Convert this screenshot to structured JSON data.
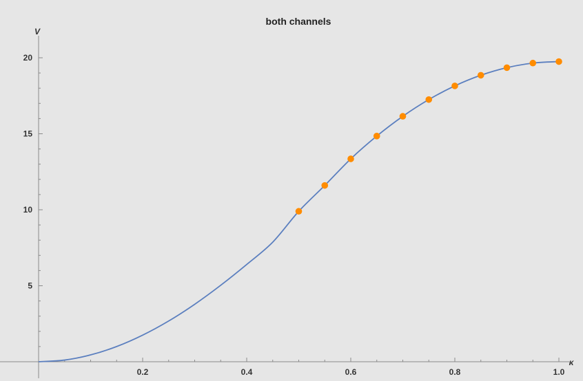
{
  "chart_data": {
    "type": "line",
    "title": "both channels",
    "xlabel": "κ",
    "ylabel": "V",
    "xlim": [
      0,
      1.0
    ],
    "ylim": [
      0,
      20
    ],
    "x_ticks": [
      0.2,
      0.4,
      0.6,
      0.8,
      1.0
    ],
    "x_tick_labels": [
      "0.2",
      "0.4",
      "0.6",
      "0.8",
      "1.0"
    ],
    "y_ticks": [
      5,
      10,
      15,
      20
    ],
    "y_tick_labels": [
      "5",
      "10",
      "15",
      "20"
    ],
    "grid": false,
    "series": [
      {
        "kind": "curve",
        "color": "#5b7fbf",
        "x": [
          0,
          0.05,
          0.1,
          0.15,
          0.2,
          0.25,
          0.3,
          0.35,
          0.4,
          0.45,
          0.5,
          0.55,
          0.6,
          0.65,
          0.7,
          0.75,
          0.8,
          0.85,
          0.9,
          0.95,
          1.0
        ],
        "y": [
          0,
          0.11,
          0.45,
          1.0,
          1.75,
          2.68,
          3.78,
          5.03,
          6.4,
          7.87,
          9.9,
          11.6,
          13.35,
          14.85,
          16.15,
          17.25,
          18.15,
          18.85,
          19.35,
          19.65,
          19.75
        ]
      },
      {
        "kind": "points",
        "color": "#ff8c00",
        "x": [
          0.5,
          0.55,
          0.6,
          0.65,
          0.7,
          0.75,
          0.8,
          0.85,
          0.9,
          0.95,
          1.0
        ],
        "y": [
          9.9,
          11.6,
          13.35,
          14.85,
          16.15,
          17.25,
          18.15,
          18.85,
          19.35,
          19.65,
          19.75
        ]
      }
    ]
  }
}
